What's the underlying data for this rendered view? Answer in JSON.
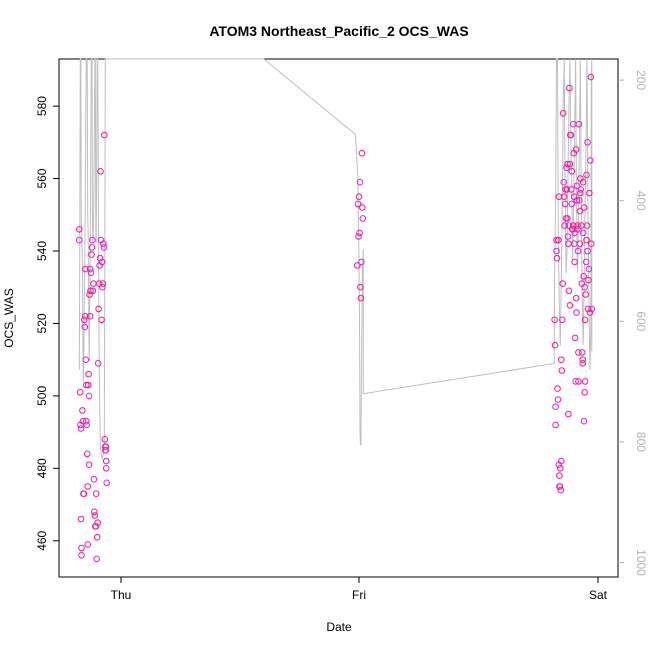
{
  "chart_data": {
    "type": "scatter",
    "title": "ATOM3 Northeast_Pacific_2 OCS_WAS",
    "xlabel": "Date",
    "ylabel": "OCS_WAS",
    "x_ticks": [
      "Thu",
      "Fri",
      "Sat"
    ],
    "ylim": [
      450,
      593
    ],
    "y_ticks": [
      460,
      480,
      500,
      520,
      540,
      560,
      580
    ],
    "y2_ticks": [
      200,
      400,
      600,
      800,
      1000
    ],
    "y2lim": [
      1024,
      165
    ],
    "grid": false,
    "colors": {
      "points": "#ff1493",
      "points_alt": "#dd22dd",
      "line": "#bebebe",
      "axis": "#000000",
      "axis2": "#b3b3b3"
    },
    "series": [
      {
        "kind": "points",
        "points": [
          [
            -0.175,
            546
          ],
          [
            -0.175,
            543
          ],
          [
            -0.172,
            501
          ],
          [
            -0.17,
            492
          ],
          [
            -0.168,
            491
          ],
          [
            -0.168,
            466
          ],
          [
            -0.166,
            458
          ],
          [
            -0.166,
            456
          ],
          [
            -0.162,
            496
          ],
          [
            -0.16,
            493
          ],
          [
            -0.158,
            473
          ],
          [
            -0.156,
            473
          ],
          [
            -0.154,
            521
          ],
          [
            -0.152,
            519
          ],
          [
            -0.15,
            535
          ],
          [
            -0.15,
            522
          ],
          [
            -0.148,
            510
          ],
          [
            -0.146,
            503
          ],
          [
            -0.146,
            493
          ],
          [
            -0.144,
            492
          ],
          [
            -0.142,
            484
          ],
          [
            -0.14,
            475
          ],
          [
            -0.14,
            459
          ],
          [
            -0.138,
            503
          ],
          [
            -0.136,
            506
          ],
          [
            -0.134,
            500
          ],
          [
            -0.134,
            481
          ],
          [
            -0.132,
            528
          ],
          [
            -0.13,
            535
          ],
          [
            -0.13,
            522
          ],
          [
            -0.128,
            529
          ],
          [
            -0.126,
            534
          ],
          [
            -0.124,
            539
          ],
          [
            -0.122,
            541
          ],
          [
            -0.12,
            543
          ],
          [
            -0.118,
            529
          ],
          [
            -0.116,
            531
          ],
          [
            -0.114,
            477
          ],
          [
            -0.112,
            468
          ],
          [
            -0.11,
            467
          ],
          [
            -0.108,
            464
          ],
          [
            -0.106,
            464
          ],
          [
            -0.104,
            473
          ],
          [
            -0.102,
            455
          ],
          [
            -0.1,
            461
          ],
          [
            -0.098,
            465
          ],
          [
            -0.096,
            509
          ],
          [
            -0.094,
            524
          ],
          [
            -0.092,
            531
          ],
          [
            -0.09,
            536
          ],
          [
            -0.088,
            538
          ],
          [
            -0.086,
            562
          ],
          [
            -0.084,
            543
          ],
          [
            -0.082,
            521
          ],
          [
            -0.08,
            537
          ],
          [
            -0.078,
            530
          ],
          [
            -0.076,
            531
          ],
          [
            -0.074,
            542
          ],
          [
            -0.072,
            541
          ],
          [
            -0.07,
            572
          ],
          [
            -0.068,
            488
          ],
          [
            -0.066,
            486
          ],
          [
            -0.066,
            485
          ],
          [
            -0.064,
            486
          ],
          [
            -0.064,
            485
          ],
          [
            -0.062,
            482
          ],
          [
            -0.062,
            480
          ],
          [
            -0.06,
            476
          ],
          [
            0.993,
            536
          ],
          [
            0.996,
            553
          ],
          [
            0.998,
            544
          ],
          [
            1.0,
            555
          ],
          [
            1.002,
            545
          ],
          [
            1.004,
            559
          ],
          [
            1.006,
            530
          ],
          [
            1.008,
            527
          ],
          [
            1.01,
            537
          ],
          [
            1.012,
            567
          ],
          [
            1.014,
            552
          ],
          [
            1.016,
            549
          ],
          [
            1.822,
            521
          ],
          [
            1.824,
            514
          ],
          [
            1.826,
            497
          ],
          [
            1.826,
            492
          ],
          [
            1.83,
            543
          ],
          [
            1.83,
            540
          ],
          [
            1.832,
            538
          ],
          [
            1.834,
            502
          ],
          [
            1.836,
            499
          ],
          [
            1.838,
            543
          ],
          [
            1.84,
            555
          ],
          [
            1.84,
            481
          ],
          [
            1.842,
            478
          ],
          [
            1.842,
            475
          ],
          [
            1.844,
            475
          ],
          [
            1.846,
            480
          ],
          [
            1.848,
            474
          ],
          [
            1.85,
            482
          ],
          [
            1.85,
            510
          ],
          [
            1.852,
            507
          ],
          [
            1.854,
            521
          ],
          [
            1.856,
            531
          ],
          [
            1.858,
            578
          ],
          [
            1.86,
            559
          ],
          [
            1.862,
            555
          ],
          [
            1.864,
            547
          ],
          [
            1.866,
            553
          ],
          [
            1.868,
            557
          ],
          [
            1.87,
            549
          ],
          [
            1.872,
            563
          ],
          [
            1.874,
            557
          ],
          [
            1.876,
            564
          ],
          [
            1.878,
            544
          ],
          [
            1.88,
            542
          ],
          [
            1.882,
            529
          ],
          [
            1.882,
            547
          ],
          [
            1.884,
            585
          ],
          [
            1.886,
            525
          ],
          [
            1.888,
            572
          ],
          [
            1.89,
            572
          ],
          [
            1.892,
            557
          ],
          [
            1.894,
            553
          ],
          [
            1.896,
            546
          ],
          [
            1.898,
            546
          ],
          [
            1.9,
            575
          ],
          [
            1.9,
            547
          ],
          [
            1.902,
            567
          ],
          [
            1.904,
            542
          ],
          [
            1.906,
            537
          ],
          [
            1.908,
            516
          ],
          [
            1.91,
            504
          ],
          [
            1.912,
            568
          ],
          [
            1.912,
            527
          ],
          [
            1.914,
            523
          ],
          [
            1.916,
            554
          ],
          [
            1.918,
            546
          ],
          [
            1.92,
            540
          ],
          [
            1.922,
            504
          ],
          [
            1.924,
            575
          ],
          [
            1.926,
            554
          ],
          [
            1.928,
            542
          ],
          [
            1.93,
            556
          ],
          [
            1.932,
            557
          ],
          [
            1.934,
            547
          ],
          [
            1.936,
            531
          ],
          [
            1.938,
            512
          ],
          [
            1.94,
            510
          ],
          [
            1.94,
            509
          ],
          [
            1.942,
            545
          ],
          [
            1.944,
            533
          ],
          [
            1.946,
            552
          ],
          [
            1.948,
            530
          ],
          [
            1.95,
            521
          ],
          [
            1.952,
            528
          ],
          [
            1.954,
            537
          ],
          [
            1.956,
            543
          ],
          [
            1.958,
            547
          ],
          [
            1.96,
            540
          ],
          [
            1.962,
            524
          ],
          [
            1.964,
            532
          ],
          [
            1.966,
            535
          ],
          [
            1.968,
            556
          ],
          [
            1.97,
            523
          ],
          [
            1.972,
            565
          ],
          [
            1.974,
            588
          ],
          [
            1.976,
            542
          ],
          [
            1.978,
            524
          ],
          [
            1.88,
            495
          ],
          [
            1.922,
            512
          ],
          [
            1.945,
            493
          ],
          [
            1.948,
            501
          ],
          [
            1.95,
            504
          ],
          [
            1.916,
            558
          ],
          [
            1.918,
            547
          ],
          [
            1.928,
            551
          ],
          [
            1.96,
            570
          ],
          [
            1.942,
            559
          ],
          [
            1.93,
            560
          ],
          [
            1.906,
            545
          ],
          [
            1.894,
            562
          ],
          [
            1.886,
            564
          ],
          [
            1.876,
            549
          ],
          [
            1.904,
            555
          ],
          [
            1.956,
            561
          ]
        ]
      },
      {
        "kind": "line",
        "axis": "right",
        "points": [
          [
            -0.175,
            680
          ],
          [
            -0.173,
            470
          ],
          [
            -0.171,
            165
          ],
          [
            -0.169,
            165
          ],
          [
            -0.167,
            430
          ],
          [
            -0.162,
            500
          ],
          [
            -0.16,
            640
          ],
          [
            -0.158,
            700
          ],
          [
            -0.156,
            640
          ],
          [
            -0.154,
            560
          ],
          [
            -0.152,
            490
          ],
          [
            -0.15,
            400
          ],
          [
            -0.148,
            250
          ],
          [
            -0.146,
            165
          ],
          [
            -0.144,
            165
          ],
          [
            -0.142,
            170
          ],
          [
            -0.14,
            420
          ],
          [
            -0.138,
            460
          ],
          [
            -0.135,
            620
          ],
          [
            -0.133,
            665
          ],
          [
            -0.131,
            560
          ],
          [
            -0.129,
            470
          ],
          [
            -0.127,
            300
          ],
          [
            -0.125,
            165
          ],
          [
            -0.122,
            165
          ],
          [
            -0.12,
            420
          ],
          [
            -0.118,
            470
          ],
          [
            -0.116,
            450
          ],
          [
            -0.114,
            380
          ],
          [
            -0.112,
            300
          ],
          [
            -0.11,
            165
          ],
          [
            -0.108,
            165
          ],
          [
            -0.106,
            450
          ],
          [
            -0.104,
            470
          ],
          [
            -0.102,
            340
          ],
          [
            -0.1,
            165
          ],
          [
            -0.098,
            165
          ],
          [
            -0.096,
            300
          ],
          [
            -0.094,
            500
          ],
          [
            -0.092,
            650
          ],
          [
            -0.09,
            730
          ],
          [
            -0.088,
            780
          ],
          [
            -0.086,
            810
          ],
          [
            -0.082,
            825
          ],
          [
            -0.078,
            828
          ],
          [
            -0.074,
            820
          ],
          [
            -0.07,
            800
          ],
          [
            -0.068,
            500
          ],
          [
            -0.066,
            165
          ],
          [
            -0.062,
            165
          ],
          [
            -0.058,
            165
          ],
          [
            -0.054,
            165
          ],
          [
            0.6,
            165
          ],
          [
            0.985,
            290
          ],
          [
            0.995,
            360
          ],
          [
            1.0,
            500
          ],
          [
            1.002,
            600
          ],
          [
            1.004,
            780
          ],
          [
            1.006,
            805
          ],
          [
            1.008,
            805
          ],
          [
            1.01,
            700
          ],
          [
            1.012,
            600
          ],
          [
            1.014,
            520
          ],
          [
            1.016,
            500
          ],
          [
            1.018,
            480
          ],
          [
            1.018,
            720
          ],
          [
            1.82,
            670
          ],
          [
            1.822,
            520
          ],
          [
            1.826,
            400
          ],
          [
            1.83,
            165
          ],
          [
            1.834,
            165
          ],
          [
            1.838,
            480
          ],
          [
            1.842,
            580
          ],
          [
            1.846,
            640
          ],
          [
            1.85,
            530
          ],
          [
            1.854,
            400
          ],
          [
            1.858,
            240
          ],
          [
            1.862,
            165
          ],
          [
            1.866,
            380
          ],
          [
            1.87,
            520
          ],
          [
            1.874,
            480
          ],
          [
            1.878,
            360
          ],
          [
            1.882,
            250
          ],
          [
            1.886,
            165
          ],
          [
            1.89,
            290
          ],
          [
            1.894,
            380
          ],
          [
            1.898,
            500
          ],
          [
            1.902,
            400
          ],
          [
            1.906,
            300
          ],
          [
            1.91,
            165
          ],
          [
            1.914,
            400
          ],
          [
            1.918,
            520
          ],
          [
            1.922,
            440
          ],
          [
            1.926,
            300
          ],
          [
            1.93,
            165
          ],
          [
            1.934,
            420
          ],
          [
            1.938,
            560
          ],
          [
            1.942,
            640
          ],
          [
            1.946,
            540
          ],
          [
            1.95,
            400
          ],
          [
            1.954,
            300
          ],
          [
            1.958,
            165
          ],
          [
            1.962,
            420
          ],
          [
            1.966,
            560
          ],
          [
            1.97,
            680
          ],
          [
            1.974,
            620
          ],
          [
            1.976,
            200
          ],
          [
            1.978,
            165
          ],
          [
            1.978,
            650
          ]
        ]
      }
    ]
  }
}
